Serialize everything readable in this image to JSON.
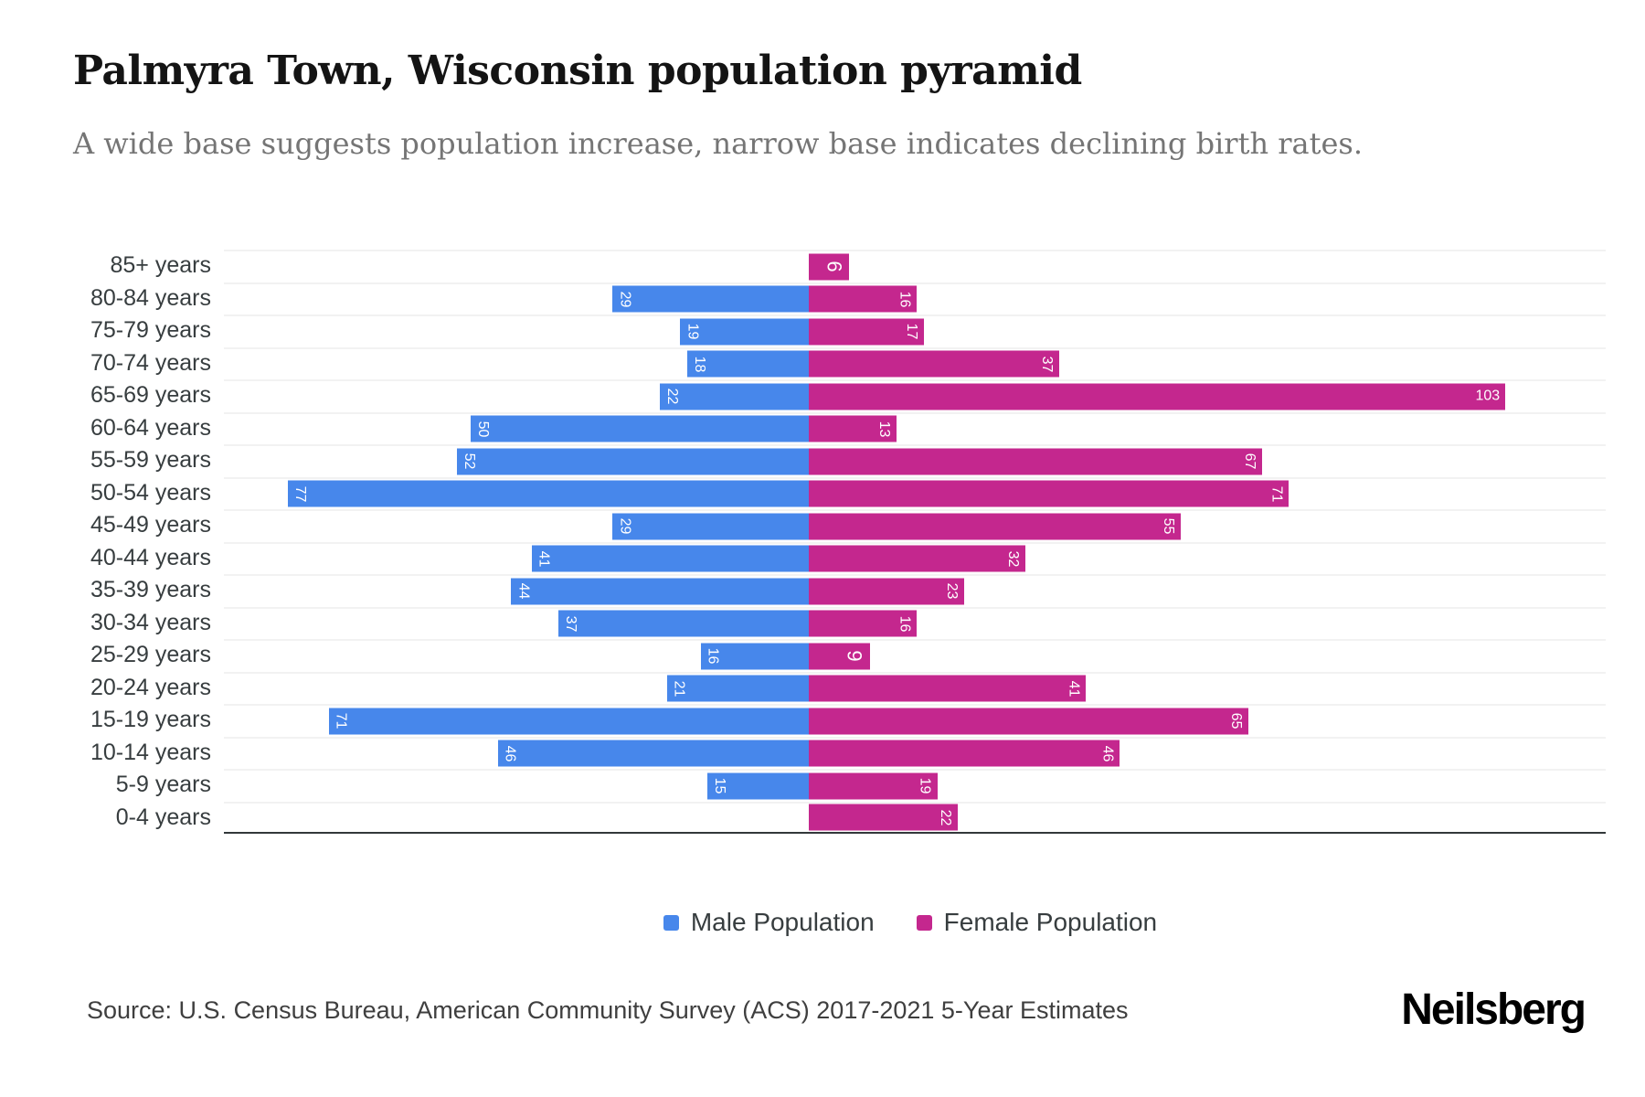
{
  "title": "Palmyra Town, Wisconsin population pyramid",
  "subtitle": "A wide base suggests population increase, narrow base indicates declining birth rates.",
  "source": "Source: U.S. Census Bureau, American Community Survey (ACS) 2017-2021 5-Year Estimates",
  "brand": "Neilsberg",
  "colors": {
    "male": "#4787EB",
    "female": "#C4278E",
    "grid": "#f2f2f2",
    "axis_line": "#32383a",
    "bar_label": "#ffffff"
  },
  "legend": {
    "items": [
      {
        "label": "Male Population",
        "color": "#4787EB"
      },
      {
        "label": "Female Population",
        "color": "#C4278E"
      }
    ]
  },
  "chart_data": {
    "type": "bar",
    "subtype": "population-pyramid",
    "orientation": "horizontal",
    "title": "Palmyra Town, Wisconsin population pyramid",
    "xlabel": "",
    "ylabel": "",
    "x_axis_tick_labels_visible": false,
    "grid": true,
    "legend_position": "bottom",
    "categories": [
      "85+ years",
      "80-84 years",
      "75-79 years",
      "70-74 years",
      "65-69 years",
      "60-64 years",
      "55-59 years",
      "50-54 years",
      "45-49 years",
      "40-44 years",
      "35-39 years",
      "30-34 years",
      "25-29 years",
      "20-24 years",
      "15-19 years",
      "10-14 years",
      "5-9 years",
      "0-4 years"
    ],
    "series": [
      {
        "name": "Male Population",
        "side": "left",
        "values": [
          0,
          29,
          19,
          18,
          22,
          50,
          52,
          77,
          29,
          41,
          44,
          37,
          16,
          21,
          71,
          46,
          15,
          0
        ]
      },
      {
        "name": "Female Population",
        "side": "right",
        "values": [
          6,
          16,
          17,
          37,
          103,
          13,
          67,
          71,
          55,
          32,
          23,
          16,
          9,
          41,
          65,
          46,
          19,
          22
        ]
      }
    ]
  }
}
